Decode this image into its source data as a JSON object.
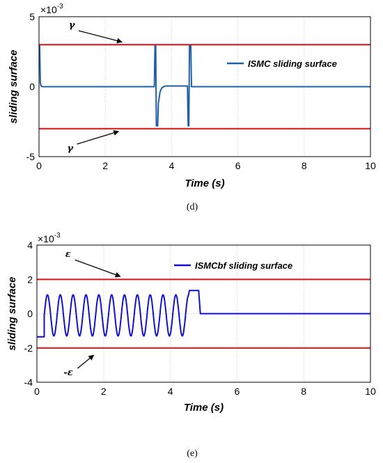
{
  "chart_data": [
    {
      "type": "line",
      "caption": "(d)",
      "xlabel": "Time (s)",
      "ylabel": "sliding surface",
      "y_exponent_base": "×10",
      "y_exponent_power": "-3",
      "xlim": [
        0,
        10
      ],
      "ylim": [
        -5,
        5
      ],
      "xticks": [
        0,
        2,
        4,
        6,
        8,
        10
      ],
      "yticks": [
        -5,
        0,
        5
      ],
      "grid": true,
      "legend_position": "top-right",
      "series": [
        {
          "name": "ISMC sliding surface",
          "color": "#1f5fa8",
          "x": [
            0,
            0.02,
            0.04,
            0.06,
            0.1,
            3.48,
            3.5,
            3.52,
            3.54,
            3.56,
            3.58,
            3.6,
            3.65,
            3.7,
            3.8,
            4.0,
            4.3,
            4.48,
            4.5,
            4.52,
            4.54,
            4.56,
            4.58,
            4.6,
            4.65,
            10
          ],
          "y": [
            3.0,
            2.9,
            0.3,
            0.05,
            0,
            0,
            3.0,
            3.0,
            -2.8,
            -2.8,
            -2.8,
            -1.2,
            -0.4,
            -0.1,
            0.05,
            0.05,
            0.05,
            0.05,
            -2.8,
            -2.8,
            3.0,
            3.0,
            3.0,
            0,
            0,
            0
          ]
        },
        {
          "name": "upper bound",
          "color": "#d42020",
          "x": [
            0,
            10
          ],
          "y": [
            3,
            3
          ]
        },
        {
          "name": "lower bound",
          "color": "#d42020",
          "x": [
            0,
            10
          ],
          "y": [
            -3,
            -3
          ]
        }
      ],
      "annotations": [
        {
          "text": "γ",
          "x_data": 0.9,
          "y_data": 4.2,
          "arrow_to": [
            2.5,
            3.05
          ]
        },
        {
          "text": "γ",
          "x_data": 0.85,
          "y_data": -4.6,
          "arrow_to": [
            2.4,
            -3.05
          ]
        }
      ]
    },
    {
      "type": "line",
      "caption": "(e)",
      "xlabel": "Time (s)",
      "ylabel": "sliding surface",
      "y_exponent_base": "×10",
      "y_exponent_power": "-3",
      "xlim": [
        0,
        10
      ],
      "ylim": [
        -4,
        4
      ],
      "xticks": [
        0,
        2,
        4,
        6,
        8,
        10
      ],
      "yticks": [
        -4,
        -2,
        0,
        2,
        4
      ],
      "grid": true,
      "legend_position": "top-right",
      "series": [
        {
          "name": "ISMCbf sliding surface",
          "color": "#1010d0",
          "oscillation": {
            "start_x": 0,
            "flat_until": 0.22,
            "flat_value": -1.35,
            "osc_start": 0.22,
            "osc_end": 4.55,
            "period": 0.385,
            "osc_max": 1.1,
            "osc_min": -1.3,
            "high_until": 4.85,
            "high_value": 1.35,
            "settle_value": 0,
            "end_x": 10
          }
        },
        {
          "name": "upper bound",
          "color": "#d42020",
          "x": [
            0,
            10
          ],
          "y": [
            2,
            2
          ]
        },
        {
          "name": "lower bound",
          "color": "#d42020",
          "x": [
            0,
            10
          ],
          "y": [
            -2,
            -2
          ]
        }
      ],
      "annotations": [
        {
          "text": "ε",
          "x_data": 0.85,
          "y_data": 3.3,
          "arrow_to": [
            2.5,
            2.05
          ]
        },
        {
          "text": "-ε",
          "x_data": 0.8,
          "y_data": -3.6,
          "arrow_to": [
            1.7,
            -2.3
          ]
        }
      ]
    }
  ]
}
